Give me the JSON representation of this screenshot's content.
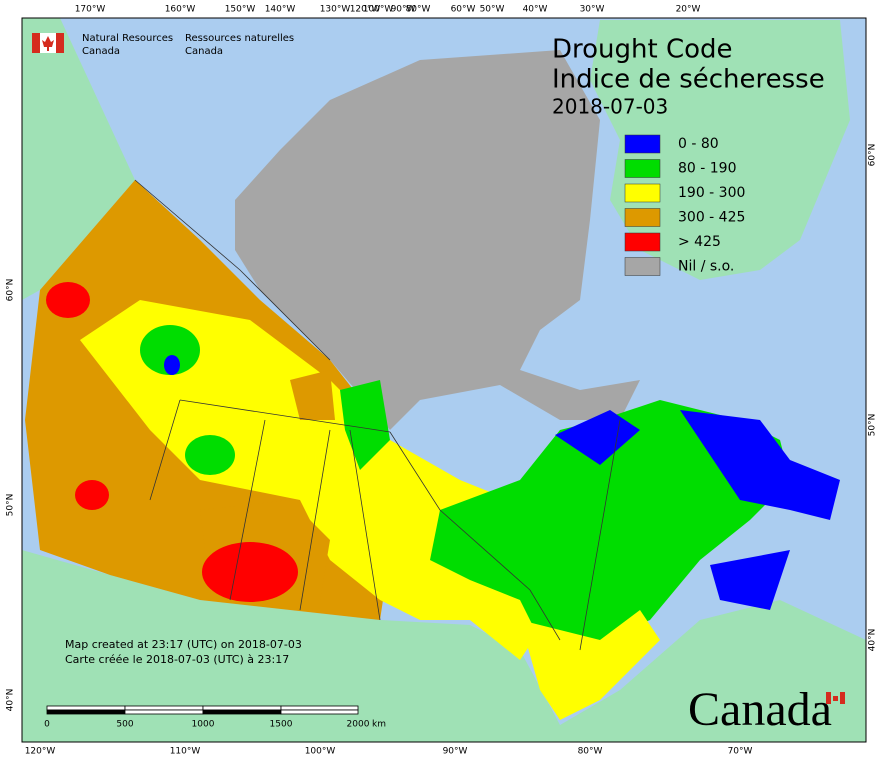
{
  "header": {
    "agency_en": [
      "Natural Resources",
      "Canada"
    ],
    "agency_fr": [
      "Ressources naturelles",
      "Canada"
    ]
  },
  "title": {
    "en": "Drought Code",
    "fr": "Indice de sécheresse",
    "date": "2018-07-03"
  },
  "legend": [
    {
      "label": "0 - 80",
      "color": "#0000ff"
    },
    {
      "label": "80 - 190",
      "color": "#00dd00"
    },
    {
      "label": "190 - 300",
      "color": "#ffff00"
    },
    {
      "label": "300 - 425",
      "color": "#dd9900"
    },
    {
      "label": "> 425",
      "color": "#ff0000"
    },
    {
      "label": "Nil / s.o.",
      "color": "#a6a6a6"
    }
  ],
  "credits": [
    "Map created at 23:17 (UTC) on 2018-07-03",
    "Carte créée le 2018-07-03 (UTC) à 23:17"
  ],
  "scale_bar": {
    "labels": [
      "0",
      "500",
      "1000",
      "1500",
      "2000"
    ],
    "unit": "km"
  },
  "graticule": {
    "top": [
      "170°W",
      "160°W",
      "150°W",
      "140°W",
      "130°W",
      "120°W",
      "100°W",
      "90°W",
      "80°W",
      "60°W",
      "50°W",
      "40°W",
      "30°W",
      "20°W"
    ],
    "bottom": [
      "120°W",
      "110°W",
      "100°W",
      "90°W",
      "80°W",
      "70°W"
    ],
    "left": [
      "60°N",
      "50°N",
      "40°N"
    ],
    "right": [
      "60°N",
      "50°N",
      "40°N"
    ]
  },
  "wordmark": "Canada"
}
